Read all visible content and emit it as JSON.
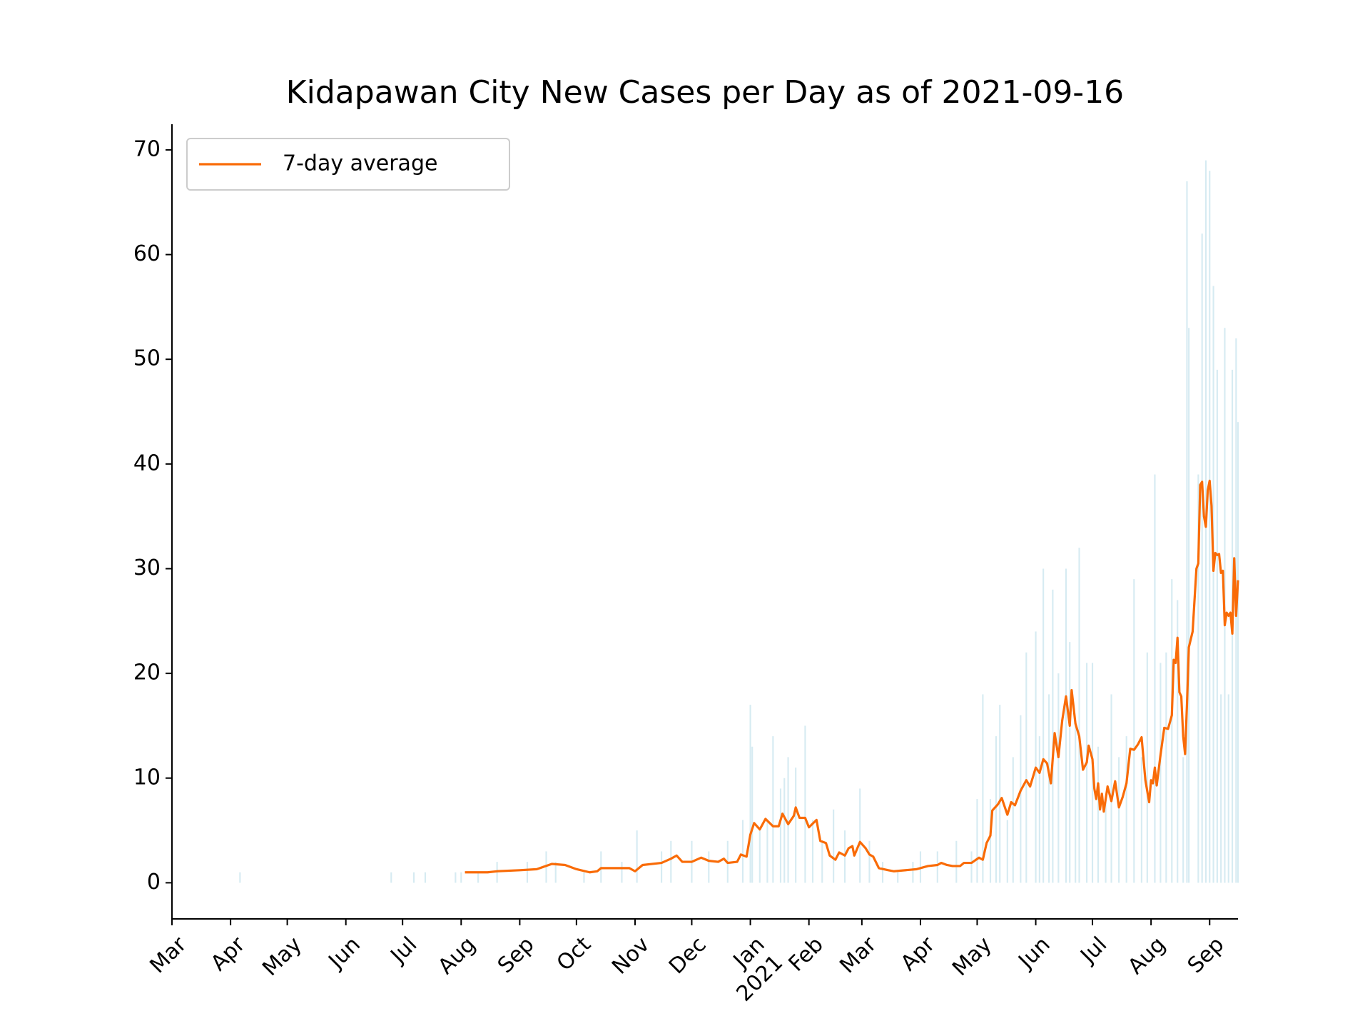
{
  "chart_data": {
    "type": "bar+line",
    "title": "Kidapawan City New Cases per Day as of 2021-09-16",
    "xlim": [
      "2020-03-01",
      "2021-09-16"
    ],
    "xticks": [
      {
        "value": "2020-03-01",
        "label": "Mar"
      },
      {
        "value": "2020-04-01",
        "label": "Apr"
      },
      {
        "value": "2020-05-01",
        "label": "May"
      },
      {
        "value": "2020-06-01",
        "label": "Jun"
      },
      {
        "value": "2020-07-01",
        "label": "Jul"
      },
      {
        "value": "2020-08-01",
        "label": "Aug"
      },
      {
        "value": "2020-09-01",
        "label": "Sep"
      },
      {
        "value": "2020-10-01",
        "label": "Oct"
      },
      {
        "value": "2020-11-01",
        "label": "Nov"
      },
      {
        "value": "2020-12-01",
        "label": "Dec"
      },
      {
        "value": "2021-01-01",
        "label": "Jan"
      },
      {
        "value": "2021-02-01",
        "label": "Feb"
      },
      {
        "value": "2021-03-01",
        "label": "Mar"
      },
      {
        "value": "2021-04-01",
        "label": "Apr"
      },
      {
        "value": "2021-05-01",
        "label": "May"
      },
      {
        "value": "2021-06-01",
        "label": "Jun"
      },
      {
        "value": "2021-07-01",
        "label": "Jul"
      },
      {
        "value": "2021-08-01",
        "label": "Aug"
      },
      {
        "value": "2021-09-01",
        "label": "Sep"
      }
    ],
    "x_year_label": {
      "value": "2021-01-01",
      "label": "2021"
    },
    "ylim": [
      -3.45,
      72.45
    ],
    "yticks": [
      0,
      10,
      20,
      30,
      40,
      50,
      60,
      70
    ],
    "legend": "upper left",
    "series": [
      {
        "type": "bar",
        "color": "#add8e6",
        "x": [
          "2020-04-06",
          "2020-06-25",
          "2020-07-07",
          "2020-07-13",
          "2020-07-29",
          "2020-08-01",
          "2020-08-10",
          "2020-08-20",
          "2020-09-05",
          "2020-09-15",
          "2020-09-20",
          "2020-10-05",
          "2020-10-14",
          "2020-10-25",
          "2020-11-02",
          "2020-11-15",
          "2020-11-20",
          "2020-12-01",
          "2020-12-10",
          "2020-12-20",
          "2020-12-28",
          "2021-01-01",
          "2021-01-02",
          "2021-01-06",
          "2021-01-10",
          "2021-01-13",
          "2021-01-17",
          "2021-01-19",
          "2021-01-21",
          "2021-01-25",
          "2021-01-30",
          "2021-02-03",
          "2021-02-08",
          "2021-02-14",
          "2021-02-20",
          "2021-02-28",
          "2021-03-05",
          "2021-03-12",
          "2021-03-20",
          "2021-03-28",
          "2021-04-01",
          "2021-04-10",
          "2021-04-20",
          "2021-04-28",
          "2021-05-01",
          "2021-05-04",
          "2021-05-08",
          "2021-05-11",
          "2021-05-13",
          "2021-05-17",
          "2021-05-20",
          "2021-05-24",
          "2021-05-27",
          "2021-06-01",
          "2021-06-03",
          "2021-06-05",
          "2021-06-08",
          "2021-06-10",
          "2021-06-13",
          "2021-06-17",
          "2021-06-19",
          "2021-06-22",
          "2021-06-24",
          "2021-06-28",
          "2021-07-01",
          "2021-07-04",
          "2021-07-08",
          "2021-07-11",
          "2021-07-15",
          "2021-07-19",
          "2021-07-23",
          "2021-07-27",
          "2021-07-30",
          "2021-08-03",
          "2021-08-06",
          "2021-08-09",
          "2021-08-12",
          "2021-08-15",
          "2021-08-18",
          "2021-08-20",
          "2021-08-21",
          "2021-08-26",
          "2021-08-28",
          "2021-08-30",
          "2021-09-01",
          "2021-09-03",
          "2021-09-05",
          "2021-09-07",
          "2021-09-09",
          "2021-09-11",
          "2021-09-13",
          "2021-09-15",
          "2021-09-16"
        ],
        "values": [
          1,
          1,
          1,
          1,
          1,
          1,
          1,
          2,
          2,
          3,
          2,
          1,
          3,
          2,
          5,
          3,
          4,
          4,
          3,
          4,
          6,
          17,
          13,
          5,
          6,
          14,
          9,
          10,
          12,
          11,
          15,
          6,
          4,
          7,
          5,
          9,
          4,
          2,
          1,
          2,
          3,
          3,
          4,
          3,
          8,
          18,
          8,
          14,
          17,
          6,
          12,
          16,
          22,
          24,
          14,
          30,
          18,
          28,
          20,
          30,
          23,
          15,
          32,
          21,
          21,
          13,
          8,
          18,
          12,
          14,
          29,
          12,
          22,
          39,
          21,
          22,
          29,
          27,
          12,
          67,
          53,
          39,
          62,
          69,
          68,
          57,
          49,
          18,
          53,
          18,
          49,
          52,
          44
        ]
      },
      {
        "type": "line",
        "name": "7-day average",
        "color": "#f96b07",
        "x": [
          "2020-08-03",
          "2020-08-15",
          "2020-08-20",
          "2020-09-01",
          "2020-09-10",
          "2020-09-18",
          "2020-09-25",
          "2020-10-01",
          "2020-10-08",
          "2020-10-12",
          "2020-10-14",
          "2020-10-29",
          "2020-11-01",
          "2020-11-05",
          "2020-11-15",
          "2020-11-20",
          "2020-11-23",
          "2020-11-26",
          "2020-12-01",
          "2020-12-06",
          "2020-12-10",
          "2020-12-15",
          "2020-12-18",
          "2020-12-20",
          "2020-12-25",
          "2020-12-27",
          "2020-12-30",
          "2021-01-01",
          "2021-01-03",
          "2021-01-06",
          "2021-01-09",
          "2021-01-13",
          "2021-01-16",
          "2021-01-18",
          "2021-01-21",
          "2021-01-24",
          "2021-01-25",
          "2021-01-27",
          "2021-01-30",
          "2021-02-01",
          "2021-02-05",
          "2021-02-07",
          "2021-02-10",
          "2021-02-12",
          "2021-02-15",
          "2021-02-17",
          "2021-02-20",
          "2021-02-22",
          "2021-02-24",
          "2021-02-25",
          "2021-02-28",
          "2021-03-03",
          "2021-03-05",
          "2021-03-07",
          "2021-03-10",
          "2021-03-15",
          "2021-03-18",
          "2021-03-30",
          "2021-04-05",
          "2021-04-10",
          "2021-04-12",
          "2021-04-15",
          "2021-04-18",
          "2021-04-22",
          "2021-04-24",
          "2021-04-28",
          "2021-05-02",
          "2021-05-04",
          "2021-05-06",
          "2021-05-08",
          "2021-05-09",
          "2021-05-12",
          "2021-05-14",
          "2021-05-17",
          "2021-05-19",
          "2021-05-21",
          "2021-05-24",
          "2021-05-27",
          "2021-05-29",
          "2021-06-01",
          "2021-06-03",
          "2021-06-05",
          "2021-06-07",
          "2021-06-09",
          "2021-06-11",
          "2021-06-13",
          "2021-06-15",
          "2021-06-17",
          "2021-06-19",
          "2021-06-20",
          "2021-06-22",
          "2021-06-24",
          "2021-06-26",
          "2021-06-28",
          "2021-06-29",
          "2021-07-01",
          "2021-07-02",
          "2021-07-03",
          "2021-07-04",
          "2021-07-05",
          "2021-07-06",
          "2021-07-07",
          "2021-07-09",
          "2021-07-11",
          "2021-07-13",
          "2021-07-15",
          "2021-07-17",
          "2021-07-19",
          "2021-07-21",
          "2021-07-23",
          "2021-07-25",
          "2021-07-27",
          "2021-07-29",
          "2021-07-31",
          "2021-08-01",
          "2021-08-02",
          "2021-08-03",
          "2021-08-04",
          "2021-08-06",
          "2021-08-08",
          "2021-08-10",
          "2021-08-12",
          "2021-08-13",
          "2021-08-14",
          "2021-08-15",
          "2021-08-16",
          "2021-08-17",
          "2021-08-18",
          "2021-08-19",
          "2021-08-20",
          "2021-08-21",
          "2021-08-23",
          "2021-08-25",
          "2021-08-26",
          "2021-08-27",
          "2021-08-28",
          "2021-08-29",
          "2021-08-30",
          "2021-08-31",
          "2021-09-01",
          "2021-09-02",
          "2021-09-03",
          "2021-09-04",
          "2021-09-05",
          "2021-09-06",
          "2021-09-07",
          "2021-09-08",
          "2021-09-09",
          "2021-09-10",
          "2021-09-11",
          "2021-09-12",
          "2021-09-13",
          "2021-09-14",
          "2021-09-15",
          "2021-09-16"
        ],
        "values": [
          1.0,
          1.0,
          1.1,
          1.2,
          1.3,
          1.8,
          1.7,
          1.3,
          1.0,
          1.1,
          1.4,
          1.4,
          1.1,
          1.7,
          1.9,
          2.3,
          2.6,
          2.0,
          2.0,
          2.4,
          2.1,
          2.0,
          2.3,
          1.9,
          2.0,
          2.7,
          2.5,
          4.6,
          5.7,
          5.1,
          6.1,
          5.4,
          5.4,
          6.6,
          5.6,
          6.4,
          7.2,
          6.2,
          6.2,
          5.3,
          6.0,
          4.0,
          3.8,
          2.6,
          2.2,
          2.9,
          2.6,
          3.3,
          3.5,
          2.6,
          3.9,
          3.3,
          2.7,
          2.5,
          1.4,
          1.2,
          1.1,
          1.3,
          1.6,
          1.7,
          1.9,
          1.7,
          1.6,
          1.6,
          1.9,
          1.9,
          2.4,
          2.2,
          3.8,
          4.5,
          6.9,
          7.5,
          8.1,
          6.5,
          7.7,
          7.4,
          8.8,
          9.8,
          9.2,
          11.0,
          10.5,
          11.8,
          11.4,
          9.5,
          14.3,
          12.0,
          15.5,
          17.8,
          15.0,
          18.4,
          15.2,
          14.0,
          10.8,
          11.5,
          13.1,
          11.8,
          9.0,
          8.0,
          9.5,
          7.0,
          8.5,
          6.8,
          9.2,
          7.8,
          9.7,
          7.2,
          8.2,
          9.5,
          12.8,
          12.7,
          13.2,
          13.9,
          9.8,
          7.7,
          9.8,
          9.5,
          11.0,
          9.3,
          12.2,
          14.8,
          14.7,
          16.0,
          21.3,
          21.0,
          23.4,
          18.2,
          17.8,
          14.0,
          12.3,
          17.0,
          22.5,
          24.0,
          30.0,
          30.5,
          38.0,
          38.3,
          35.0,
          34.0,
          37.5,
          38.4,
          36.0,
          29.8,
          31.5,
          31.3,
          31.4,
          29.6,
          29.8,
          24.6,
          25.8,
          25.5,
          25.8,
          23.8,
          31.0,
          25.5,
          28.9
        ]
      }
    ]
  }
}
